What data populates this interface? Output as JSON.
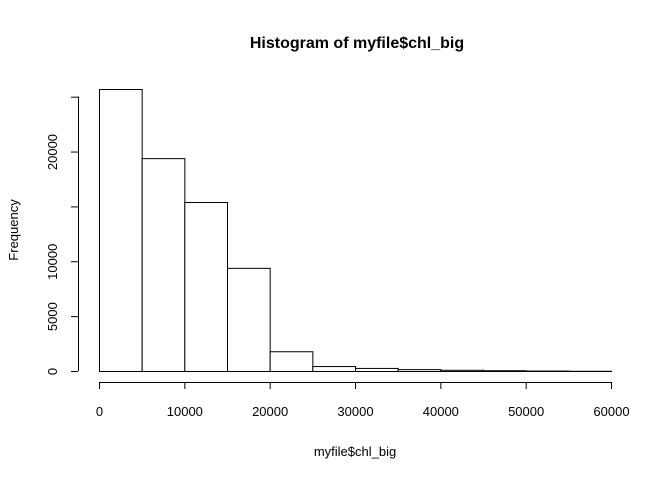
{
  "chart_data": {
    "type": "bar",
    "title": "Histogram of myfile$chl_big",
    "xlabel": "myfile$chl_big",
    "ylabel": "Frequency",
    "bin_edges": [
      0,
      5000,
      10000,
      15000,
      20000,
      25000,
      30000,
      35000,
      40000,
      45000,
      50000,
      55000,
      60000
    ],
    "values": [
      25700,
      19400,
      15400,
      9400,
      1800,
      450,
      280,
      170,
      110,
      70,
      40,
      20
    ],
    "xlim": [
      0,
      60000
    ],
    "ylim": [
      0,
      25700
    ],
    "x_ticks": [
      0,
      10000,
      20000,
      30000,
      40000,
      50000,
      60000
    ],
    "x_tick_labels": [
      "0",
      "10000",
      "20000",
      "30000",
      "40000",
      "50000",
      "60000"
    ],
    "y_ticks": [
      0,
      5000,
      10000,
      15000,
      20000,
      25000
    ],
    "y_tick_labels": [
      "0",
      "5000",
      "10000",
      "",
      "20000",
      ""
    ],
    "grid": false,
    "bar_fill": "#ffffff",
    "bar_stroke": "#000000"
  }
}
